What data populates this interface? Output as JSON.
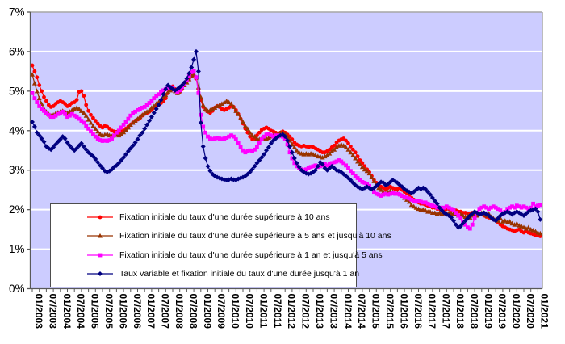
{
  "chart_data": {
    "type": "line",
    "title": "",
    "unit": "%",
    "grid": "horizontal",
    "plot_bg": "#CCCCFF",
    "gridline_color": "#FFFFFF",
    "axis_color": "#595959",
    "border_color": "#A6A6A6",
    "legend_position": "bottom-left-overlay",
    "y_axis": {
      "min": 0,
      "max": 7,
      "step": 1,
      "tick_labels": [
        "0%",
        "1%",
        "2%",
        "3%",
        "4%",
        "5%",
        "6%",
        "7%"
      ]
    },
    "x_axis": {
      "start": "01/2003",
      "end": "02/2021",
      "frequency": "monthly",
      "tick_labels": [
        "01/2003",
        "07/2003",
        "01/2004",
        "07/2004",
        "01/2005",
        "07/2005",
        "01/2006",
        "07/2006",
        "01/2007",
        "07/2007",
        "01/2008",
        "07/2008",
        "01/2009",
        "07/2009",
        "01/2010",
        "07/2010",
        "01/2011",
        "07/2011",
        "01/2012",
        "07/2012",
        "01/2013",
        "07/2013",
        "01/2014",
        "07/2014",
        "01/2015",
        "07/2015",
        "01/2016",
        "07/2016",
        "01/2017",
        "07/2017",
        "01/2018",
        "07/2018",
        "01/2019",
        "07/2019",
        "01/2020",
        "07/2020",
        "01/2021"
      ]
    },
    "series": [
      {
        "name": "Fixation initiale du taux d'une durée supérieure à 10 ans",
        "color": "#FF0000",
        "marker": "circle",
        "values": [
          5.65,
          5.5,
          5.35,
          5.15,
          5.0,
          4.85,
          4.75,
          4.65,
          4.6,
          4.62,
          4.68,
          4.72,
          4.75,
          4.72,
          4.68,
          4.62,
          4.65,
          4.7,
          4.72,
          4.78,
          4.98,
          5.0,
          4.88,
          4.65,
          4.5,
          4.4,
          4.32,
          4.25,
          4.18,
          4.12,
          4.08,
          4.12,
          4.1,
          4.05,
          4.0,
          3.98,
          3.97,
          3.96,
          3.98,
          4.0,
          4.05,
          4.1,
          4.15,
          4.2,
          4.25,
          4.28,
          4.32,
          4.38,
          4.42,
          4.45,
          4.48,
          4.52,
          4.58,
          4.62,
          4.65,
          4.7,
          4.75,
          4.82,
          4.95,
          5.05,
          5.12,
          5.05,
          4.95,
          4.98,
          5.05,
          5.15,
          5.25,
          5.32,
          5.38,
          5.4,
          5.32,
          5.05,
          4.78,
          4.6,
          4.52,
          4.48,
          4.45,
          4.5,
          4.58,
          4.62,
          4.6,
          4.55,
          4.52,
          4.55,
          4.58,
          4.62,
          4.6,
          4.52,
          4.42,
          4.3,
          4.18,
          4.05,
          3.95,
          3.85,
          3.78,
          3.8,
          3.88,
          3.95,
          4.02,
          4.05,
          4.08,
          4.05,
          4.0,
          3.98,
          3.95,
          3.92,
          3.95,
          3.98,
          3.95,
          3.9,
          3.85,
          3.78,
          3.7,
          3.65,
          3.62,
          3.6,
          3.62,
          3.6,
          3.58,
          3.6,
          3.58,
          3.55,
          3.52,
          3.48,
          3.45,
          3.45,
          3.48,
          3.52,
          3.58,
          3.62,
          3.7,
          3.75,
          3.78,
          3.8,
          3.75,
          3.68,
          3.6,
          3.52,
          3.45,
          3.35,
          3.25,
          3.18,
          3.1,
          3.02,
          2.95,
          2.85,
          2.75,
          2.68,
          2.62,
          2.58,
          2.55,
          2.52,
          2.55,
          2.58,
          2.55,
          2.52,
          2.52,
          2.55,
          2.5,
          2.45,
          2.42,
          2.38,
          2.3,
          2.25,
          2.2,
          2.18,
          2.15,
          2.15,
          2.12,
          2.1,
          2.08,
          2.05,
          2.05,
          2.02,
          2.02,
          2.0,
          2.0,
          2.02,
          2.02,
          2.0,
          2.0,
          1.98,
          1.95,
          1.95,
          1.92,
          1.92,
          1.9,
          1.9,
          1.92,
          1.9,
          1.9,
          1.88,
          1.88,
          1.85,
          1.82,
          1.8,
          1.78,
          1.75,
          1.72,
          1.68,
          1.62,
          1.58,
          1.55,
          1.52,
          1.5,
          1.48,
          1.45,
          1.48,
          1.5,
          1.45,
          1.42,
          1.45,
          1.42,
          1.4,
          1.38,
          1.36,
          1.35,
          1.33
        ]
      },
      {
        "name": "Fixation initiale du taux d'une durée supérieure à 5 ans et  jusqu'à 10 ans",
        "color": "#993300",
        "marker": "triangle",
        "values": [
          5.42,
          5.2,
          5.0,
          4.82,
          4.68,
          4.55,
          4.48,
          4.42,
          4.38,
          4.4,
          4.44,
          4.46,
          4.48,
          4.5,
          4.48,
          4.45,
          4.48,
          4.52,
          4.55,
          4.58,
          4.55,
          4.5,
          4.45,
          4.38,
          4.28,
          4.2,
          4.12,
          4.05,
          3.98,
          3.92,
          3.88,
          3.9,
          3.92,
          3.88,
          3.86,
          3.88,
          3.9,
          3.88,
          3.92,
          3.96,
          4.02,
          4.08,
          4.15,
          4.2,
          4.25,
          4.3,
          4.35,
          4.4,
          4.44,
          4.48,
          4.52,
          4.58,
          4.62,
          4.68,
          4.72,
          4.78,
          4.85,
          4.9,
          4.98,
          5.02,
          5.05,
          5.0,
          4.95,
          5.0,
          5.08,
          5.15,
          5.22,
          5.3,
          5.38,
          5.42,
          5.35,
          5.1,
          4.85,
          4.65,
          4.55,
          4.5,
          4.52,
          4.55,
          4.58,
          4.62,
          4.65,
          4.68,
          4.72,
          4.75,
          4.72,
          4.68,
          4.6,
          4.5,
          4.42,
          4.32,
          4.22,
          4.12,
          4.05,
          3.95,
          3.88,
          3.85,
          3.8,
          3.78,
          3.8,
          3.78,
          3.8,
          3.82,
          3.85,
          3.88,
          3.9,
          3.92,
          3.95,
          3.95,
          3.92,
          3.85,
          3.75,
          3.65,
          3.58,
          3.5,
          3.45,
          3.42,
          3.4,
          3.42,
          3.4,
          3.42,
          3.4,
          3.38,
          3.35,
          3.35,
          3.32,
          3.35,
          3.38,
          3.42,
          3.48,
          3.52,
          3.58,
          3.62,
          3.65,
          3.62,
          3.58,
          3.52,
          3.45,
          3.38,
          3.3,
          3.22,
          3.15,
          3.08,
          3.02,
          2.98,
          2.92,
          2.82,
          2.72,
          2.62,
          2.55,
          2.5,
          2.45,
          2.42,
          2.45,
          2.48,
          2.45,
          2.42,
          2.42,
          2.4,
          2.35,
          2.3,
          2.25,
          2.2,
          2.12,
          2.08,
          2.05,
          2.02,
          2.0,
          2.0,
          1.98,
          1.95,
          1.95,
          1.92,
          1.92,
          1.9,
          1.92,
          1.9,
          1.92,
          1.9,
          1.92,
          1.9,
          1.9,
          1.88,
          1.85,
          1.88,
          1.85,
          1.82,
          1.85,
          1.8,
          1.85,
          1.88,
          1.85,
          1.9,
          1.92,
          1.88,
          1.85,
          1.9,
          1.82,
          1.78,
          1.75,
          1.72,
          1.78,
          1.7,
          1.72,
          1.68,
          1.7,
          1.65,
          1.62,
          1.65,
          1.6,
          1.58,
          1.55,
          1.52,
          1.55,
          1.5,
          1.48,
          1.45,
          1.42,
          1.4
        ]
      },
      {
        "name": "Fixation initiale du taux d'une durée supérieure à 1 an et  jusqu'à 5 ans",
        "color": "#FF00FF",
        "marker": "square",
        "values": [
          4.95,
          4.82,
          4.72,
          4.62,
          4.55,
          4.5,
          4.45,
          4.4,
          4.35,
          4.35,
          4.38,
          4.42,
          4.45,
          4.48,
          4.42,
          4.35,
          4.38,
          4.42,
          4.38,
          4.35,
          4.3,
          4.25,
          4.2,
          4.12,
          4.05,
          3.98,
          3.92,
          3.85,
          3.8,
          3.76,
          3.74,
          3.75,
          3.74,
          3.76,
          3.8,
          3.88,
          3.95,
          4.0,
          4.08,
          4.15,
          4.22,
          4.3,
          4.38,
          4.44,
          4.48,
          4.52,
          4.55,
          4.58,
          4.6,
          4.65,
          4.7,
          4.75,
          4.82,
          4.88,
          4.92,
          4.98,
          5.02,
          5.05,
          5.08,
          5.1,
          5.08,
          5.02,
          4.98,
          5.02,
          5.1,
          5.18,
          5.28,
          5.38,
          5.48,
          5.5,
          5.35,
          4.95,
          4.4,
          4.1,
          3.95,
          3.85,
          3.8,
          3.78,
          3.8,
          3.82,
          3.8,
          3.78,
          3.8,
          3.82,
          3.85,
          3.88,
          3.85,
          3.78,
          3.68,
          3.58,
          3.5,
          3.45,
          3.48,
          3.5,
          3.48,
          3.52,
          3.58,
          3.68,
          3.78,
          3.85,
          3.9,
          3.92,
          3.88,
          3.85,
          3.88,
          3.85,
          3.88,
          3.85,
          3.8,
          3.65,
          3.45,
          3.3,
          3.18,
          3.1,
          3.05,
          3.02,
          3.0,
          3.02,
          3.05,
          3.08,
          3.1,
          3.12,
          3.08,
          3.1,
          3.12,
          3.15,
          3.12,
          3.15,
          3.18,
          3.2,
          3.22,
          3.25,
          3.22,
          3.18,
          3.12,
          3.05,
          2.98,
          2.92,
          2.85,
          2.8,
          2.75,
          2.7,
          2.68,
          2.65,
          2.6,
          2.52,
          2.45,
          2.4,
          2.38,
          2.35,
          2.38,
          2.4,
          2.38,
          2.4,
          2.42,
          2.4,
          2.4,
          2.38,
          2.35,
          2.32,
          2.3,
          2.28,
          2.25,
          2.22,
          2.2,
          2.22,
          2.2,
          2.18,
          2.18,
          2.15,
          2.12,
          2.1,
          2.08,
          2.05,
          2.05,
          2.02,
          2.05,
          2.08,
          2.05,
          2.02,
          1.98,
          1.92,
          1.85,
          1.78,
          1.7,
          1.62,
          1.55,
          1.52,
          1.62,
          1.78,
          1.92,
          2.02,
          2.05,
          2.08,
          2.05,
          2.02,
          2.05,
          2.08,
          2.05,
          2.02,
          1.98,
          1.88,
          1.95,
          2.02,
          2.05,
          2.08,
          2.05,
          2.1,
          2.08,
          2.05,
          2.08,
          2.05,
          2.02,
          2.05,
          2.15,
          2.08,
          2.1,
          2.12
        ]
      },
      {
        "name": "Taux variable et fixation initiale du taux d'une durée jusqu'à 1 an",
        "color": "#000080",
        "marker": "diamond",
        "values": [
          4.22,
          4.1,
          3.95,
          3.88,
          3.8,
          3.72,
          3.6,
          3.55,
          3.52,
          3.58,
          3.65,
          3.72,
          3.78,
          3.85,
          3.8,
          3.7,
          3.62,
          3.55,
          3.5,
          3.55,
          3.62,
          3.68,
          3.6,
          3.52,
          3.45,
          3.4,
          3.35,
          3.28,
          3.2,
          3.12,
          3.05,
          2.98,
          2.95,
          2.98,
          3.02,
          3.08,
          3.12,
          3.18,
          3.25,
          3.32,
          3.4,
          3.48,
          3.55,
          3.62,
          3.7,
          3.78,
          3.88,
          3.95,
          4.05,
          4.15,
          4.25,
          4.35,
          4.45,
          4.55,
          4.65,
          4.78,
          4.92,
          5.05,
          5.15,
          5.1,
          5.05,
          5.02,
          5.05,
          5.1,
          5.15,
          5.22,
          5.32,
          5.45,
          5.6,
          5.8,
          6.0,
          5.5,
          4.2,
          3.6,
          3.3,
          3.1,
          2.98,
          2.9,
          2.85,
          2.82,
          2.8,
          2.78,
          2.76,
          2.75,
          2.76,
          2.78,
          2.76,
          2.75,
          2.78,
          2.8,
          2.82,
          2.85,
          2.9,
          2.95,
          3.02,
          3.1,
          3.18,
          3.25,
          3.32,
          3.4,
          3.5,
          3.58,
          3.68,
          3.75,
          3.8,
          3.85,
          3.88,
          3.9,
          3.85,
          3.75,
          3.6,
          3.45,
          3.3,
          3.18,
          3.08,
          3.0,
          2.95,
          2.92,
          2.9,
          2.92,
          2.95,
          3.0,
          3.1,
          3.2,
          3.15,
          3.05,
          3.0,
          3.05,
          3.1,
          3.05,
          3.0,
          2.98,
          2.95,
          2.9,
          2.85,
          2.8,
          2.75,
          2.68,
          2.62,
          2.58,
          2.55,
          2.52,
          2.55,
          2.58,
          2.55,
          2.52,
          2.55,
          2.6,
          2.65,
          2.7,
          2.68,
          2.62,
          2.65,
          2.7,
          2.75,
          2.72,
          2.68,
          2.62,
          2.58,
          2.52,
          2.48,
          2.45,
          2.42,
          2.45,
          2.5,
          2.55,
          2.52,
          2.55,
          2.52,
          2.45,
          2.38,
          2.3,
          2.22,
          2.15,
          2.05,
          1.98,
          1.92,
          1.88,
          1.85,
          1.8,
          1.72,
          1.62,
          1.55,
          1.58,
          1.65,
          1.72,
          1.78,
          1.85,
          1.9,
          1.95,
          1.92,
          1.88,
          1.9,
          1.92,
          1.88,
          1.85,
          1.8,
          1.75,
          1.72,
          1.78,
          1.85,
          1.9,
          1.92,
          1.95,
          1.92,
          1.88,
          1.92,
          1.95,
          1.92,
          1.88,
          1.85,
          1.9,
          1.95,
          1.98,
          2.0,
          2.02,
          1.95,
          1.75
        ]
      }
    ]
  }
}
